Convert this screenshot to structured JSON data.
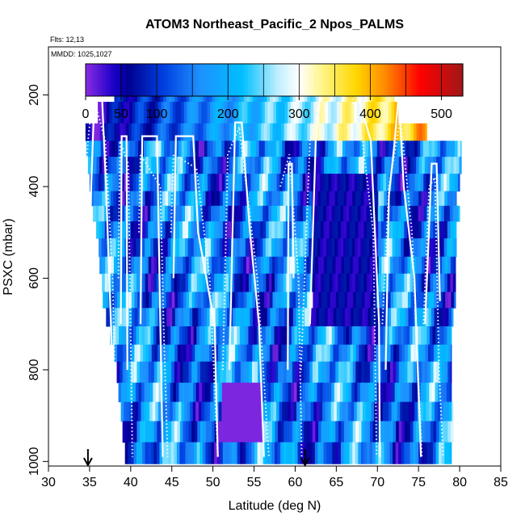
{
  "chart_data": {
    "type": "heatmap",
    "title": "ATOM3 Northeast_Pacific_2 Npos_PALMS",
    "annotations": {
      "flights": "Flts: 12,13",
      "dates": "MMDD: 1025,1027"
    },
    "xlabel": "Latitude (deg N)",
    "ylabel": "PSXC (mbar)",
    "xlim": [
      30,
      85
    ],
    "ylim": [
      1010,
      95
    ],
    "x_ticks": [
      30,
      35,
      40,
      45,
      50,
      55,
      60,
      65,
      70,
      75,
      80,
      85
    ],
    "y_ticks": [
      200,
      400,
      600,
      800,
      1000
    ],
    "colorbar": {
      "range": [
        0,
        530
      ],
      "tick_values": [
        0,
        50,
        100,
        200,
        300,
        400,
        500
      ],
      "tick_labels": [
        "0",
        "50",
        "100",
        "200",
        "300",
        "400",
        "500"
      ],
      "color_stops": [
        {
          "value": 0,
          "color": "#8a2be2"
        },
        {
          "value": 40,
          "color": "#1a00c8"
        },
        {
          "value": 60,
          "color": "#000090"
        },
        {
          "value": 110,
          "color": "#0040e0"
        },
        {
          "value": 160,
          "color": "#1e90ff"
        },
        {
          "value": 220,
          "color": "#00bfff"
        },
        {
          "value": 270,
          "color": "#bfefff"
        },
        {
          "value": 300,
          "color": "#ffffff"
        },
        {
          "value": 330,
          "color": "#fff68f"
        },
        {
          "value": 380,
          "color": "#ffd700"
        },
        {
          "value": 420,
          "color": "#ff8c00"
        },
        {
          "value": 470,
          "color": "#ff0000"
        },
        {
          "value": 530,
          "color": "#a01818"
        }
      ]
    },
    "arrow_markers_lat": [
      34.8,
      61.2
    ],
    "profile_lines": [
      {
        "style": "solid",
        "points": [
          [
            34.7,
            990
          ],
          [
            34.9,
            700
          ],
          [
            35.2,
            400
          ],
          [
            35.6,
            200
          ],
          [
            36.5,
            200
          ],
          [
            37.0,
            400
          ],
          [
            37.8,
            800
          ],
          [
            38.0,
            990
          ]
        ]
      },
      {
        "style": "solid",
        "points": [
          [
            38.8,
            700
          ],
          [
            38.9,
            290
          ],
          [
            39.5,
            290
          ],
          [
            39.6,
            800
          ]
        ]
      },
      {
        "style": "solid",
        "points": [
          [
            41.2,
            700
          ],
          [
            41.4,
            290
          ],
          [
            43.2,
            290
          ],
          [
            43.6,
            700
          ],
          [
            43.9,
            990
          ]
        ]
      },
      {
        "style": "solid",
        "points": [
          [
            45.2,
            600
          ],
          [
            45.5,
            290
          ],
          [
            47.6,
            290
          ],
          [
            48.2,
            500
          ],
          [
            50.2,
            700
          ],
          [
            50.6,
            990
          ]
        ]
      },
      {
        "style": "solid",
        "points": [
          [
            52.0,
            800
          ],
          [
            52.7,
            260
          ],
          [
            53.5,
            260
          ],
          [
            54.5,
            500
          ],
          [
            55.6,
            700
          ],
          [
            56.2,
            990
          ]
        ]
      },
      {
        "style": "solid",
        "points": [
          [
            59.1,
            800
          ],
          [
            59.2,
            350
          ],
          [
            59.6,
            350
          ],
          [
            59.8,
            600
          ]
        ]
      },
      {
        "style": "solid",
        "points": [
          [
            61.8,
            700
          ],
          [
            62.5,
            300
          ],
          [
            63.1,
            180
          ],
          [
            66.9,
            180
          ],
          [
            67.6,
            200
          ],
          [
            69.2,
            300
          ],
          [
            70.2,
            700
          ],
          [
            70.3,
            990
          ]
        ]
      },
      {
        "style": "solid",
        "points": [
          [
            71.0,
            800
          ],
          [
            71.4,
            420
          ],
          [
            72.0,
            320
          ],
          [
            72.6,
            200
          ],
          [
            73.2,
            400
          ],
          [
            74.5,
            600
          ],
          [
            75.3,
            990
          ]
        ]
      },
      {
        "style": "solid",
        "points": [
          [
            75.8,
            700
          ],
          [
            76.6,
            350
          ],
          [
            77.2,
            350
          ],
          [
            77.6,
            650
          ]
        ]
      },
      {
        "style": "dotted",
        "points": [
          [
            34.3,
            700
          ],
          [
            34.5,
            400
          ],
          [
            34.8,
            300
          ],
          [
            35.4,
            200
          ],
          [
            36.9,
            300
          ],
          [
            37.8,
            600
          ],
          [
            38.3,
            990
          ]
        ]
      },
      {
        "style": "dotted",
        "points": [
          [
            38.5,
            600
          ],
          [
            38.7,
            300
          ],
          [
            39.7,
            350
          ],
          [
            40.2,
            990
          ]
        ]
      },
      {
        "style": "dotted",
        "points": [
          [
            41.0,
            500
          ],
          [
            41.2,
            330
          ],
          [
            43.6,
            400
          ],
          [
            44.0,
            700
          ],
          [
            44.5,
            990
          ]
        ]
      },
      {
        "style": "dotted",
        "points": [
          [
            44.9,
            500
          ],
          [
            45.2,
            330
          ],
          [
            48.0,
            360
          ],
          [
            49.6,
            600
          ],
          [
            50.6,
            990
          ]
        ]
      },
      {
        "style": "dotted",
        "points": [
          [
            51.2,
            800
          ],
          [
            51.8,
            330
          ],
          [
            53.2,
            270
          ],
          [
            55.4,
            600
          ],
          [
            56.8,
            990
          ]
        ]
      },
      {
        "style": "dotted",
        "points": [
          [
            58.2,
            400
          ],
          [
            59.3,
            330
          ],
          [
            60.4,
            600
          ],
          [
            60.8,
            990
          ]
        ]
      },
      {
        "style": "dotted",
        "points": [
          [
            60.7,
            800
          ],
          [
            61.8,
            300
          ],
          [
            63.4,
            200
          ],
          [
            66.8,
            200
          ],
          [
            68.2,
            300
          ],
          [
            69.5,
            500
          ],
          [
            69.9,
            990
          ]
        ]
      },
      {
        "style": "dotted",
        "points": [
          [
            70.6,
            700
          ],
          [
            71.4,
            400
          ],
          [
            72.8,
            250
          ],
          [
            74.2,
            500
          ],
          [
            75.4,
            990
          ]
        ]
      },
      {
        "style": "dotted",
        "points": [
          [
            75.6,
            700
          ],
          [
            76.3,
            400
          ],
          [
            77.0,
            380
          ],
          [
            77.5,
            800
          ],
          [
            78.0,
            990
          ]
        ]
      }
    ]
  }
}
